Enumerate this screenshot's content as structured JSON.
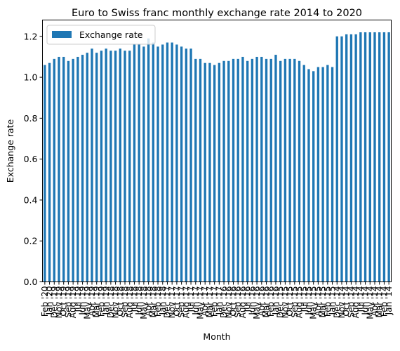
{
  "chart_data": {
    "type": "bar",
    "title": "Euro to Swiss franc monthly exchange rate 2014 to 2020",
    "xlabel": "Month",
    "ylabel": "Exchange rate",
    "ylim": [
      0,
      1.28
    ],
    "yticks": [
      "0.0",
      "0.2",
      "0.4",
      "0.6",
      "0.8",
      "1.0",
      "1.2"
    ],
    "grid": false,
    "legend": {
      "position": "top-left",
      "color": "#1f77b4"
    },
    "categories": [
      "Feb '20",
      "Jan '20",
      "Dec '19",
      "Nov '19",
      "Oct '19",
      "Sep '19",
      "Aug '19",
      "Jul '19",
      "Jun '19",
      "May '19",
      "Apr '19",
      "Mar '19",
      "Feb '19",
      "Jan '19",
      "Dec '18",
      "Nov '18",
      "Oct '18",
      "Sep '18",
      "Aug '18",
      "Jul '18",
      "Jun '18",
      "May '18",
      "Apr '18",
      "Mar '18",
      "Feb '18",
      "Jan '18",
      "Dec '17",
      "Nov '17",
      "Oct '17",
      "Sep '17",
      "Aug '17",
      "Jul '17",
      "Jun '17",
      "May '17",
      "Apr '17",
      "Mar '17",
      "Feb '17",
      "Jan '17",
      "Dec '16",
      "Nov '16",
      "Oct '16",
      "Sep '16",
      "Aug '16",
      "Jul '16",
      "Jun '16",
      "May '16",
      "Apr '16",
      "Mar '16",
      "Feb '16",
      "Jan '16",
      "Dec '15",
      "Nov '15",
      "Oct '15",
      "Sep '15",
      "Aug '15",
      "Jul '15",
      "Jun '15",
      "May '15",
      "Apr '15",
      "Mar '15",
      "Feb '15",
      "Jan '15",
      "Dec '14",
      "Nov '14",
      "Oct '14",
      "Sep '14",
      "Aug '14",
      "Jul '14",
      "Jun '14",
      "May '14",
      "Apr '14",
      "Mar '14",
      "Feb '14",
      "Jan '14"
    ],
    "series": [
      {
        "name": "Exchange rate",
        "color": "#1f77b4",
        "values": [
          1.06,
          1.07,
          1.09,
          1.1,
          1.1,
          1.08,
          1.09,
          1.1,
          1.11,
          1.12,
          1.14,
          1.12,
          1.13,
          1.14,
          1.13,
          1.13,
          1.14,
          1.13,
          1.13,
          1.16,
          1.16,
          1.15,
          1.19,
          1.17,
          1.15,
          1.16,
          1.17,
          1.17,
          1.16,
          1.15,
          1.14,
          1.14,
          1.09,
          1.09,
          1.07,
          1.07,
          1.06,
          1.07,
          1.08,
          1.08,
          1.09,
          1.09,
          1.1,
          1.08,
          1.09,
          1.1,
          1.1,
          1.09,
          1.09,
          1.11,
          1.08,
          1.09,
          1.09,
          1.09,
          1.08,
          1.06,
          1.04,
          1.03,
          1.05,
          1.05,
          1.06,
          1.05,
          1.2,
          1.2,
          1.21,
          1.21,
          1.21,
          1.22,
          1.22,
          1.22,
          1.22,
          1.22,
          1.22,
          1.22
        ]
      }
    ]
  }
}
